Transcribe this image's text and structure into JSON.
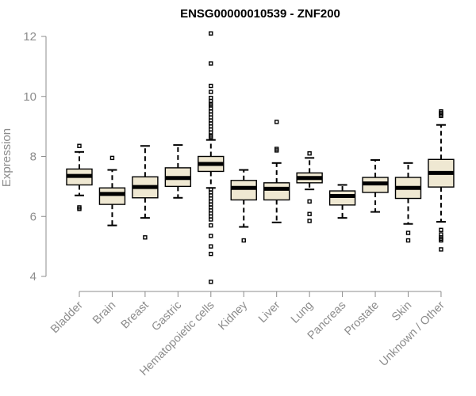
{
  "chart_data": {
    "type": "box",
    "title": "ENSG00000010539 - ZNF200",
    "ylabel": "Expression",
    "ylim": [
      3.7,
      12.2
    ],
    "yticks": [
      "4",
      "6",
      "8",
      "10",
      "12"
    ],
    "grid": false,
    "colors": {
      "box_fill": "#efe8d2",
      "box_stroke": "#000000",
      "axis": "#8c8c8c"
    },
    "categories": [
      "Bladder",
      "Brain",
      "Breast",
      "Gastric",
      "Hematopoietic cells",
      "Kidney",
      "Liver",
      "Lung",
      "Pancreas",
      "Prostate",
      "Skin",
      "Unknown / Other"
    ],
    "boxes": [
      {
        "min": 6.7,
        "q1": 7.05,
        "median": 7.35,
        "q3": 7.58,
        "max": 8.15,
        "outliers": [
          8.35,
          6.3,
          6.25
        ]
      },
      {
        "min": 5.7,
        "q1": 6.4,
        "median": 6.75,
        "q3": 6.95,
        "max": 7.55,
        "outliers": [
          7.95
        ]
      },
      {
        "min": 5.95,
        "q1": 6.62,
        "median": 6.98,
        "q3": 7.32,
        "max": 8.35,
        "outliers": [
          5.3
        ]
      },
      {
        "min": 6.62,
        "q1": 7.0,
        "median": 7.28,
        "q3": 7.62,
        "max": 8.38,
        "outliers": []
      },
      {
        "min": 6.95,
        "q1": 7.5,
        "median": 7.75,
        "q3": 8.0,
        "max": 8.55,
        "outliers": [
          12.1,
          11.1,
          10.35,
          10.15,
          9.95,
          9.85,
          9.75,
          9.7,
          9.6,
          9.5,
          9.4,
          9.3,
          9.2,
          9.1,
          9.0,
          8.9,
          8.8,
          8.7,
          8.65,
          6.9,
          6.8,
          6.7,
          6.6,
          6.5,
          6.4,
          6.3,
          6.2,
          6.1,
          6.0,
          5.9,
          5.7,
          5.35,
          5.0,
          4.75,
          3.82
        ]
      },
      {
        "min": 5.65,
        "q1": 6.55,
        "median": 6.95,
        "q3": 7.2,
        "max": 7.55,
        "outliers": [
          5.2
        ]
      },
      {
        "min": 5.8,
        "q1": 6.55,
        "median": 6.92,
        "q3": 7.12,
        "max": 7.78,
        "outliers": [
          9.15,
          8.25,
          8.2
        ]
      },
      {
        "min": 6.9,
        "q1": 7.12,
        "median": 7.28,
        "q3": 7.45,
        "max": 7.95,
        "outliers": [
          8.1,
          6.5,
          6.08,
          5.85
        ]
      },
      {
        "min": 5.95,
        "q1": 6.38,
        "median": 6.68,
        "q3": 6.85,
        "max": 7.05,
        "outliers": []
      },
      {
        "min": 6.15,
        "q1": 6.8,
        "median": 7.1,
        "q3": 7.3,
        "max": 7.88,
        "outliers": []
      },
      {
        "min": 5.75,
        "q1": 6.6,
        "median": 6.95,
        "q3": 7.3,
        "max": 7.78,
        "outliers": [
          5.45,
          5.2
        ]
      },
      {
        "min": 5.82,
        "q1": 6.98,
        "median": 7.45,
        "q3": 7.9,
        "max": 9.05,
        "outliers": [
          9.5,
          9.45,
          9.4,
          9.35,
          5.55,
          5.4,
          5.3,
          5.25,
          5.2,
          4.9
        ]
      }
    ]
  }
}
